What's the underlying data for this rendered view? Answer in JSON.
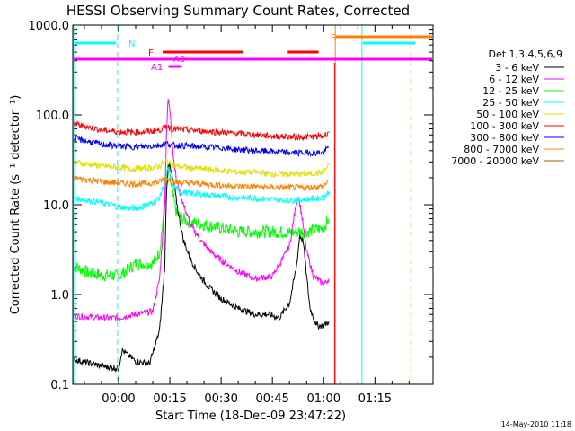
{
  "chart_data": {
    "type": "line",
    "title": "HESSI Observing Summary Count Rates, Corrected",
    "xlabel": "Start Time (18-Dec-09 23:47:22)",
    "ylabel": "Corrected Count Rate (s⁻¹ detector⁻¹)",
    "y_scale": "log",
    "ylim": [
      0.1,
      1000
    ],
    "xlim_minutes": [
      -13.4,
      92
    ],
    "x_ticks": [
      {
        "minute": 0,
        "label": "00:00"
      },
      {
        "minute": 15,
        "label": "00:15"
      },
      {
        "minute": 30,
        "label": "00:30"
      },
      {
        "minute": 45,
        "label": "00:45"
      },
      {
        "minute": 60,
        "label": "01:00"
      },
      {
        "minute": 75,
        "label": "01:15"
      }
    ],
    "y_ticks": [
      {
        "value": 0.1,
        "label": "0.1"
      },
      {
        "value": 1,
        "label": "1.0"
      },
      {
        "value": 10,
        "label": "10.0"
      },
      {
        "value": 100,
        "label": "100.0"
      },
      {
        "value": 1000,
        "label": "1000.0"
      }
    ],
    "legend_title": "Det 1,3,4,5,6,9",
    "legend_position": "right",
    "series": [
      {
        "name": "3 - 6 keV",
        "color": "#000000",
        "points": [
          [
            -13.4,
            0.19
          ],
          [
            -5,
            0.16
          ],
          [
            0,
            0.15
          ],
          [
            1,
            0.24
          ],
          [
            5,
            0.18
          ],
          [
            9,
            0.17
          ],
          [
            10,
            0.22
          ],
          [
            12,
            0.4
          ],
          [
            13.5,
            2
          ],
          [
            14,
            13
          ],
          [
            14.6,
            30
          ],
          [
            15.5,
            22
          ],
          [
            16.5,
            14
          ],
          [
            17.5,
            8
          ],
          [
            19,
            4
          ],
          [
            21,
            2.5
          ],
          [
            23,
            1.8
          ],
          [
            26,
            1.25
          ],
          [
            30,
            0.9
          ],
          [
            35,
            0.7
          ],
          [
            40,
            0.6
          ],
          [
            44,
            0.6
          ],
          [
            47,
            0.55
          ],
          [
            50,
            0.8
          ],
          [
            52,
            2
          ],
          [
            53,
            4.5
          ],
          [
            54,
            4
          ],
          [
            55,
            1.6
          ],
          [
            56,
            0.7
          ],
          [
            58,
            0.45
          ],
          [
            60,
            0.45
          ],
          [
            61.5,
            0.5
          ]
        ]
      },
      {
        "name": "6 - 12 keV",
        "color": "#ff00ff",
        "points": [
          [
            -13.4,
            0.58
          ],
          [
            -5,
            0.55
          ],
          [
            0,
            0.55
          ],
          [
            5,
            0.6
          ],
          [
            10,
            0.65
          ],
          [
            12,
            1.5
          ],
          [
            13.5,
            10
          ],
          [
            14,
            60
          ],
          [
            14.5,
            150
          ],
          [
            15.2,
            100
          ],
          [
            16,
            35
          ],
          [
            17,
            18
          ],
          [
            19,
            10
          ],
          [
            21,
            6
          ],
          [
            24,
            4
          ],
          [
            27,
            3
          ],
          [
            30,
            2.4
          ],
          [
            35,
            1.8
          ],
          [
            40,
            1.5
          ],
          [
            45,
            1.6
          ],
          [
            48,
            2.5
          ],
          [
            50,
            3.5
          ],
          [
            51.5,
            8
          ],
          [
            52.5,
            13
          ],
          [
            53.5,
            8
          ],
          [
            55,
            3
          ],
          [
            57,
            1.6
          ],
          [
            60,
            1.3
          ],
          [
            61.5,
            1.5
          ]
        ]
      },
      {
        "name": "12 - 25 keV",
        "color": "#00ff00",
        "points": [
          [
            -13.4,
            2.1
          ],
          [
            -8,
            1.7
          ],
          [
            0,
            1.6
          ],
          [
            5,
            2.2
          ],
          [
            10,
            2.2
          ],
          [
            12,
            3
          ],
          [
            13.5,
            10
          ],
          [
            14.5,
            28
          ],
          [
            15.5,
            15
          ],
          [
            17,
            8
          ],
          [
            20,
            6.5
          ],
          [
            25,
            6
          ],
          [
            30,
            5.5
          ],
          [
            35,
            5
          ],
          [
            40,
            5
          ],
          [
            45,
            5
          ],
          [
            50,
            4.9
          ],
          [
            55,
            5
          ],
          [
            60,
            5.5
          ],
          [
            61.5,
            7
          ]
        ]
      },
      {
        "name": "25 - 50 keV",
        "color": "#00ffff",
        "points": [
          [
            -13.4,
            12
          ],
          [
            -5,
            10.5
          ],
          [
            0,
            9.5
          ],
          [
            5,
            9
          ],
          [
            10,
            10.5
          ],
          [
            12,
            12
          ],
          [
            13.5,
            18
          ],
          [
            14.5,
            25
          ],
          [
            16,
            16
          ],
          [
            18,
            14
          ],
          [
            20,
            13.5
          ],
          [
            25,
            13
          ],
          [
            30,
            12.5
          ],
          [
            35,
            12
          ],
          [
            40,
            11.8
          ],
          [
            45,
            11.5
          ],
          [
            50,
            11.2
          ],
          [
            55,
            11.5
          ],
          [
            60,
            12
          ],
          [
            61.5,
            14
          ]
        ]
      },
      {
        "name": "50 - 100 keV",
        "color": "#e0e000",
        "points": [
          [
            -13.4,
            30
          ],
          [
            -5,
            27
          ],
          [
            0,
            26
          ],
          [
            5,
            25
          ],
          [
            10,
            26
          ],
          [
            12,
            27
          ],
          [
            14,
            31
          ],
          [
            16,
            27
          ],
          [
            20,
            26
          ],
          [
            25,
            25
          ],
          [
            30,
            24
          ],
          [
            35,
            23
          ],
          [
            40,
            23
          ],
          [
            45,
            22
          ],
          [
            50,
            22
          ],
          [
            55,
            22
          ],
          [
            60,
            23
          ],
          [
            61.5,
            28
          ]
        ]
      },
      {
        "name": "100 - 300 keV",
        "color": "#ff0000",
        "points": [
          [
            -13.4,
            80
          ],
          [
            -5,
            68
          ],
          [
            0,
            65
          ],
          [
            5,
            64
          ],
          [
            10,
            66
          ],
          [
            12,
            68
          ],
          [
            14,
            75
          ],
          [
            16,
            70
          ],
          [
            20,
            68
          ],
          [
            25,
            66
          ],
          [
            30,
            64
          ],
          [
            35,
            62
          ],
          [
            40,
            60
          ],
          [
            45,
            58
          ],
          [
            50,
            57
          ],
          [
            55,
            57
          ],
          [
            60,
            58
          ],
          [
            61.5,
            65
          ]
        ]
      },
      {
        "name": "300 - 800 keV",
        "color": "#0000ff",
        "points": [
          [
            -13.4,
            55
          ],
          [
            -5,
            47
          ],
          [
            0,
            45
          ],
          [
            5,
            44
          ],
          [
            10,
            45
          ],
          [
            12,
            46
          ],
          [
            14,
            48
          ],
          [
            16,
            46
          ],
          [
            20,
            45
          ],
          [
            25,
            44
          ],
          [
            30,
            43
          ],
          [
            35,
            41
          ],
          [
            40,
            40
          ],
          [
            45,
            39
          ],
          [
            50,
            38
          ],
          [
            55,
            38
          ],
          [
            60,
            38
          ],
          [
            61.5,
            44
          ]
        ]
      },
      {
        "name": "800 - 7000 keV",
        "color": "#ff8000",
        "points": [
          [
            -13.4,
            20
          ],
          [
            -5,
            18
          ],
          [
            0,
            17.5
          ],
          [
            5,
            17
          ],
          [
            10,
            17.5
          ],
          [
            12,
            18
          ],
          [
            14,
            20
          ],
          [
            16,
            18
          ],
          [
            20,
            17.5
          ],
          [
            25,
            17
          ],
          [
            30,
            16.5
          ],
          [
            35,
            16
          ],
          [
            40,
            16
          ],
          [
            45,
            15.5
          ],
          [
            50,
            15.5
          ],
          [
            55,
            15.5
          ],
          [
            60,
            16
          ],
          [
            61.5,
            19
          ]
        ]
      },
      {
        "name": "7000 - 20000 keV",
        "color": "#a06000",
        "points": []
      }
    ],
    "flags": {
      "saa_line": {
        "label": "S",
        "color": "#ff8000"
      },
      "night_label": "N",
      "flare_label": "F",
      "attenuator_labels": [
        "A0",
        "A1"
      ]
    }
  },
  "footer": {
    "timestamp": "14-May-2010 11:18"
  }
}
